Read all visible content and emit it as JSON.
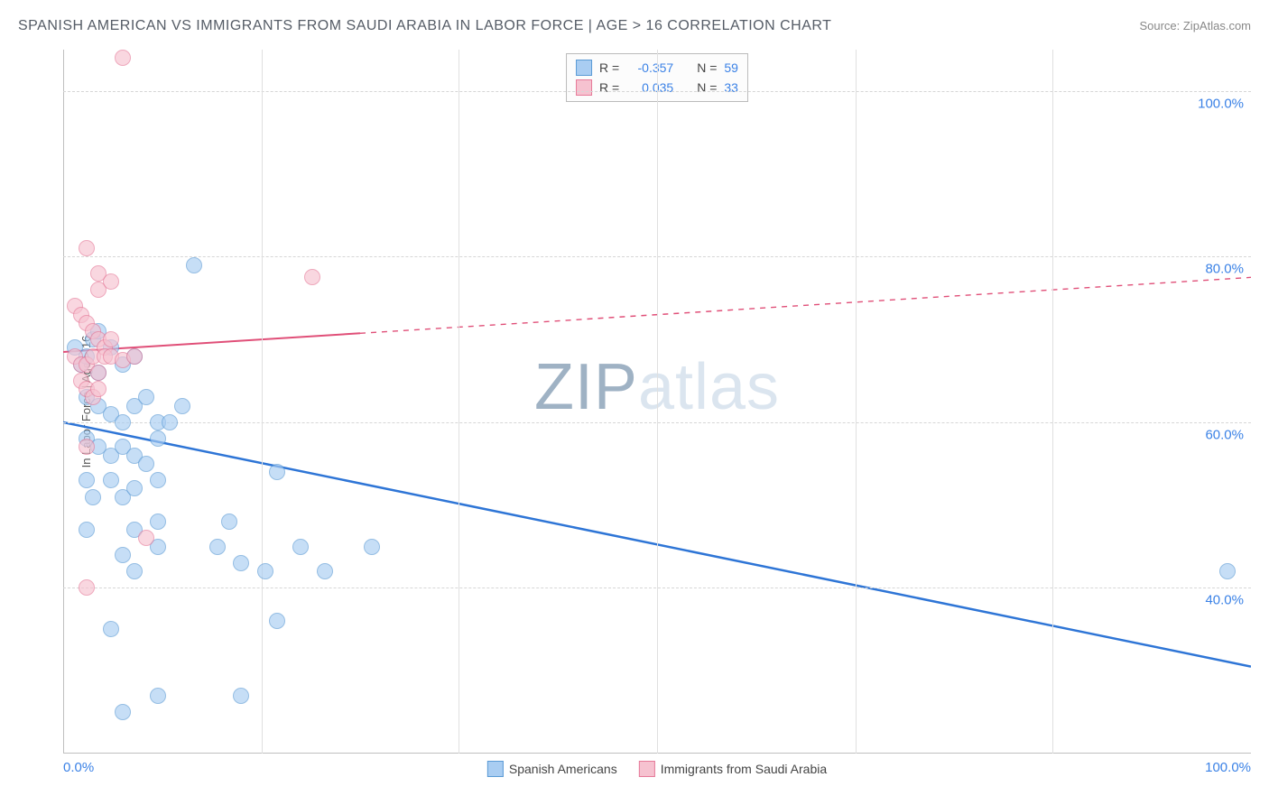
{
  "header": {
    "title": "SPANISH AMERICAN VS IMMIGRANTS FROM SAUDI ARABIA IN LABOR FORCE | AGE > 16 CORRELATION CHART",
    "source": "Source: ZipAtlas.com"
  },
  "chart": {
    "type": "scatter",
    "y_axis_label": "In Labor Force | Age > 16",
    "xlim": [
      0,
      100
    ],
    "ylim": [
      20,
      105
    ],
    "x_ticks": [
      0,
      100
    ],
    "x_tick_labels": [
      "0.0%",
      "100.0%"
    ],
    "x_minor_grid": [
      16.7,
      33.3,
      50,
      66.7,
      83.3
    ],
    "y_ticks": [
      40,
      60,
      80,
      100
    ],
    "y_tick_labels": [
      "40.0%",
      "60.0%",
      "80.0%",
      "100.0%"
    ],
    "background_color": "#ffffff",
    "grid_color": "#d6d6d6",
    "axis_color": "#bfbfbf",
    "tick_label_color": "#3b82e6",
    "tick_fontsize": 15,
    "watermark": {
      "text1": "ZIP",
      "text2": "atlas"
    },
    "series": [
      {
        "name": "Spanish Americans",
        "color_fill": "#a9cdf2",
        "color_stroke": "#5b9bd5",
        "opacity": 0.65,
        "marker_radius": 9,
        "trend": {
          "x1": 0,
          "y1": 60,
          "x2": 100,
          "y2": 30.5,
          "color": "#2e75d6",
          "width": 2.5,
          "dashed_from_x": 100
        },
        "points": [
          [
            1,
            69
          ],
          [
            1.5,
            67
          ],
          [
            2,
            68
          ],
          [
            2.5,
            70
          ],
          [
            3,
            71
          ],
          [
            3,
            66
          ],
          [
            4,
            69
          ],
          [
            5,
            67
          ],
          [
            6,
            68
          ],
          [
            11,
            79
          ],
          [
            2,
            63
          ],
          [
            3,
            62
          ],
          [
            4,
            61
          ],
          [
            5,
            60
          ],
          [
            6,
            62
          ],
          [
            7,
            63
          ],
          [
            8,
            60
          ],
          [
            9,
            60
          ],
          [
            10,
            62
          ],
          [
            2,
            58
          ],
          [
            3,
            57
          ],
          [
            4,
            56
          ],
          [
            5,
            57
          ],
          [
            6,
            56
          ],
          [
            7,
            55
          ],
          [
            8,
            58
          ],
          [
            2,
            53
          ],
          [
            2.5,
            51
          ],
          [
            4,
            53
          ],
          [
            5,
            51
          ],
          [
            6,
            52
          ],
          [
            8,
            53
          ],
          [
            2,
            47
          ],
          [
            6,
            47
          ],
          [
            8,
            48
          ],
          [
            14,
            48
          ],
          [
            18,
            54
          ],
          [
            5,
            44
          ],
          [
            8,
            45
          ],
          [
            13,
            45
          ],
          [
            20,
            45
          ],
          [
            26,
            45
          ],
          [
            6,
            42
          ],
          [
            15,
            43
          ],
          [
            17,
            42
          ],
          [
            22,
            42
          ],
          [
            4,
            35
          ],
          [
            18,
            36
          ],
          [
            8,
            27
          ],
          [
            15,
            27
          ],
          [
            5,
            25
          ],
          [
            98,
            42
          ]
        ]
      },
      {
        "name": "Immigrants from Saudi Arabia",
        "color_fill": "#f6c2d0",
        "color_stroke": "#e67a99",
        "opacity": 0.65,
        "marker_radius": 9,
        "trend": {
          "x1": 0,
          "y1": 68.5,
          "x2": 100,
          "y2": 77.5,
          "color": "#e04f78",
          "width": 2,
          "dashed_from_x": 25
        },
        "points": [
          [
            5,
            104
          ],
          [
            2,
            81
          ],
          [
            3,
            78
          ],
          [
            3,
            76
          ],
          [
            4,
            77
          ],
          [
            21,
            77.5
          ],
          [
            1,
            74
          ],
          [
            1.5,
            73
          ],
          [
            2,
            72
          ],
          [
            2.5,
            71
          ],
          [
            3,
            70
          ],
          [
            3.5,
            69
          ],
          [
            4,
            70
          ],
          [
            1,
            68
          ],
          [
            1.5,
            67
          ],
          [
            2,
            67
          ],
          [
            2.5,
            68
          ],
          [
            3,
            66
          ],
          [
            3.5,
            68
          ],
          [
            4,
            68
          ],
          [
            5,
            67.5
          ],
          [
            6,
            68
          ],
          [
            1.5,
            65
          ],
          [
            2,
            64
          ],
          [
            2.5,
            63
          ],
          [
            3,
            64
          ],
          [
            2,
            57
          ],
          [
            7,
            46
          ],
          [
            2,
            40
          ]
        ]
      }
    ],
    "legend_top": [
      {
        "swatch_fill": "#a9cdf2",
        "swatch_stroke": "#5b9bd5",
        "r_label": "R =",
        "r_value": "-0.357",
        "n_label": "N =",
        "n_value": "59"
      },
      {
        "swatch_fill": "#f6c2d0",
        "swatch_stroke": "#e67a99",
        "r_label": "R =",
        "r_value": "0.035",
        "n_label": "N =",
        "n_value": "33"
      }
    ],
    "legend_bottom": [
      {
        "swatch_fill": "#a9cdf2",
        "swatch_stroke": "#5b9bd5",
        "label": "Spanish Americans"
      },
      {
        "swatch_fill": "#f6c2d0",
        "swatch_stroke": "#e67a99",
        "label": "Immigrants from Saudi Arabia"
      }
    ]
  }
}
